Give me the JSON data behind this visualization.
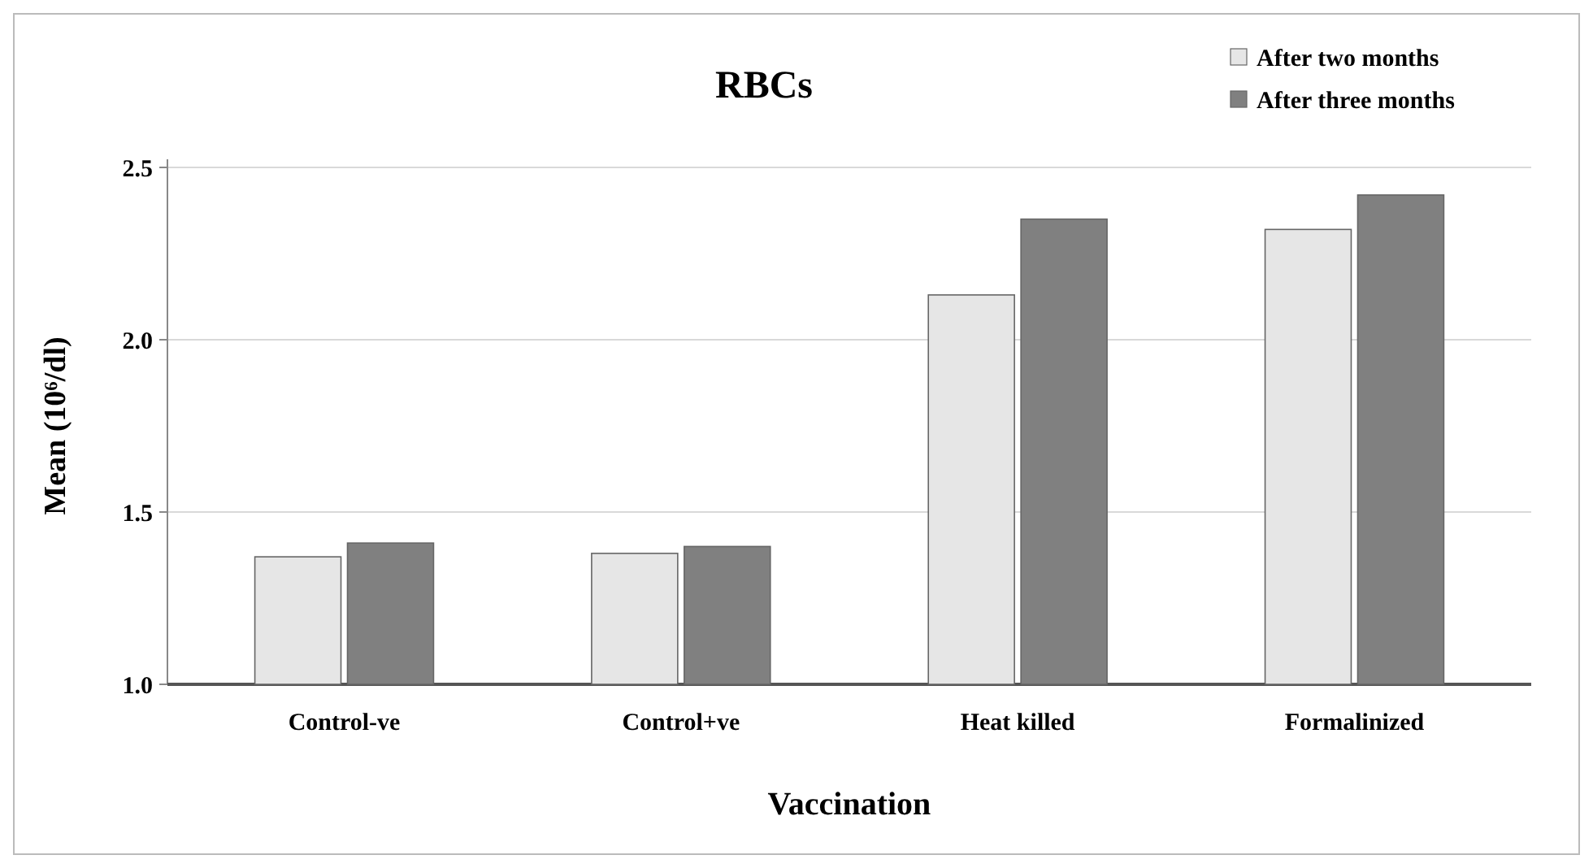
{
  "chart_data": {
    "type": "bar",
    "title": "RBCs",
    "xlabel": "Vaccination",
    "ylabel": "Mean (10⁶/dl)",
    "categories": [
      "Control-ve",
      "Control+ve",
      "Heat killed",
      "Formalinized"
    ],
    "series": [
      {
        "name": "After two months",
        "color": "#e6e6e6",
        "values": [
          1.37,
          1.38,
          2.13,
          2.32
        ]
      },
      {
        "name": "After three months",
        "color": "#808080",
        "values": [
          1.41,
          1.4,
          2.35,
          2.42
        ]
      }
    ],
    "ylim": [
      1,
      2.5
    ],
    "yticks": [
      {
        "value": 1,
        "label": "1.0"
      },
      1.5,
      {
        "value": 2,
        "label": "2.0"
      },
      2.5
    ],
    "grid": "y",
    "legend": "top right"
  }
}
